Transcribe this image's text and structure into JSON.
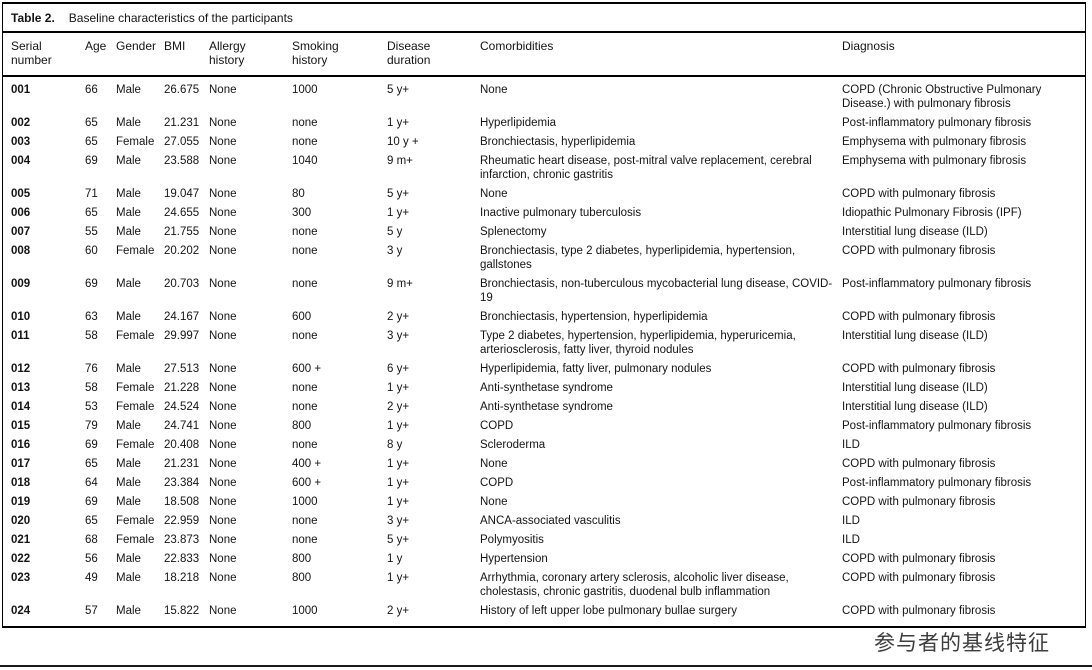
{
  "table": {
    "title_label": "Table 2.",
    "title_text": "Baseline characteristics of the participants",
    "columns": [
      "Serial\nnumber",
      "Age",
      "Gender",
      "BMI",
      "Allergy\nhistory",
      "Smoking\nhistory",
      "Disease\nduration",
      "Comorbidities",
      "Diagnosis"
    ],
    "rows": [
      [
        "001",
        "66",
        "Male",
        "26.675",
        "None",
        "1000",
        "5 y+",
        "None",
        "COPD (Chronic Obstructive Pulmonary Disease.) with pulmonary fibrosis"
      ],
      [
        "002",
        "65",
        "Male",
        "21.231",
        "None",
        "none",
        "1 y+",
        "Hyperlipidemia",
        "Post-inflammatory pulmonary fibrosis"
      ],
      [
        "003",
        "65",
        "Female",
        "27.055",
        "None",
        "none",
        "10 y +",
        "Bronchiectasis, hyperlipidemia",
        "Emphysema with pulmonary fibrosis"
      ],
      [
        "004",
        "69",
        "Male",
        "23.588",
        "None",
        "1040",
        "9 m+",
        "Rheumatic heart disease, post-mitral valve replacement, cerebral infarction, chronic gastritis",
        "Emphysema with pulmonary fibrosis"
      ],
      [
        "005",
        "71",
        "Male",
        "19.047",
        "None",
        "80",
        "5 y+",
        "None",
        "COPD with pulmonary fibrosis"
      ],
      [
        "006",
        "65",
        "Male",
        "24.655",
        "None",
        "300",
        "1 y+",
        "Inactive pulmonary tuberculosis",
        "Idiopathic Pulmonary Fibrosis (IPF)"
      ],
      [
        "007",
        "55",
        "Male",
        "21.755",
        "None",
        "none",
        "5 y",
        "Splenectomy",
        "Interstitial lung disease (ILD)"
      ],
      [
        "008",
        "60",
        "Female",
        "20.202",
        "None",
        "none",
        "3 y",
        "Bronchiectasis, type 2 diabetes, hyperlipidemia, hypertension, gallstones",
        "COPD with pulmonary fibrosis"
      ],
      [
        "009",
        "69",
        "Male",
        "20.703",
        "None",
        "none",
        "9 m+",
        "Bronchiectasis, non-tuberculous mycobacterial lung disease, COVID-19",
        "Post-inflammatory pulmonary fibrosis"
      ],
      [
        "010",
        "63",
        "Male",
        "24.167",
        "None",
        "600",
        "2 y+",
        "Bronchiectasis, hypertension, hyperlipidemia",
        "COPD with pulmonary fibrosis"
      ],
      [
        "011",
        "58",
        "Female",
        "29.997",
        "None",
        "none",
        "3 y+",
        "Type 2 diabetes, hypertension, hyperlipidemia, hyperuricemia, arteriosclerosis, fatty liver, thyroid nodules",
        "Interstitial lung disease (ILD)"
      ],
      [
        "012",
        "76",
        "Male",
        "27.513",
        "None",
        "600 +",
        "6 y+",
        "Hyperlipidemia, fatty liver, pulmonary nodules",
        "COPD with pulmonary fibrosis"
      ],
      [
        "013",
        "58",
        "Female",
        "21.228",
        "None",
        "none",
        "1 y+",
        "Anti-synthetase syndrome",
        "Interstitial lung disease (ILD)"
      ],
      [
        "014",
        "53",
        "Female",
        "24.524",
        "None",
        "none",
        "2 y+",
        "Anti-synthetase syndrome",
        "Interstitial lung disease (ILD)"
      ],
      [
        "015",
        "79",
        "Male",
        "24.741",
        "None",
        "800",
        "1 y+",
        "COPD",
        "Post-inflammatory pulmonary fibrosis"
      ],
      [
        "016",
        "69",
        "Female",
        "20.408",
        "None",
        "none",
        "8 y",
        "Scleroderma",
        "ILD"
      ],
      [
        "017",
        "65",
        "Male",
        "21.231",
        "None",
        "400 +",
        "1 y+",
        "None",
        "COPD with pulmonary fibrosis"
      ],
      [
        "018",
        "64",
        "Male",
        "23.384",
        "None",
        "600 +",
        "1 y+",
        "COPD",
        "Post-inflammatory pulmonary fibrosis"
      ],
      [
        "019",
        "69",
        "Male",
        "18.508",
        "None",
        "1000",
        "1 y+",
        "None",
        "COPD with pulmonary fibrosis"
      ],
      [
        "020",
        "65",
        "Female",
        "22.959",
        "None",
        "none",
        "3 y+",
        "ANCA-associated vasculitis",
        "ILD"
      ],
      [
        "021",
        "68",
        "Female",
        "23.873",
        "None",
        "none",
        "5 y+",
        "Polymyositis",
        "ILD"
      ],
      [
        "022",
        "56",
        "Male",
        "22.833",
        "None",
        "800",
        "1 y",
        "Hypertension",
        "COPD with pulmonary fibrosis"
      ],
      [
        "023",
        "49",
        "Male",
        "18.218",
        "None",
        "800",
        "1 y+",
        "Arrhythmia, coronary artery sclerosis, alcoholic liver disease, cholestasis, chronic gastritis, duodenal bulb inflammation",
        "COPD with pulmonary fibrosis"
      ],
      [
        "024",
        "57",
        "Male",
        "15.822",
        "None",
        "1000",
        "2 y+",
        "History of left upper lobe pulmonary bullae surgery",
        "COPD with pulmonary fibrosis"
      ]
    ]
  },
  "caption_cn": "参与者的基线特征",
  "colors": {
    "text": "#141414",
    "border": "#000000",
    "caption": "#3d3d3d",
    "background": "#ffffff"
  }
}
